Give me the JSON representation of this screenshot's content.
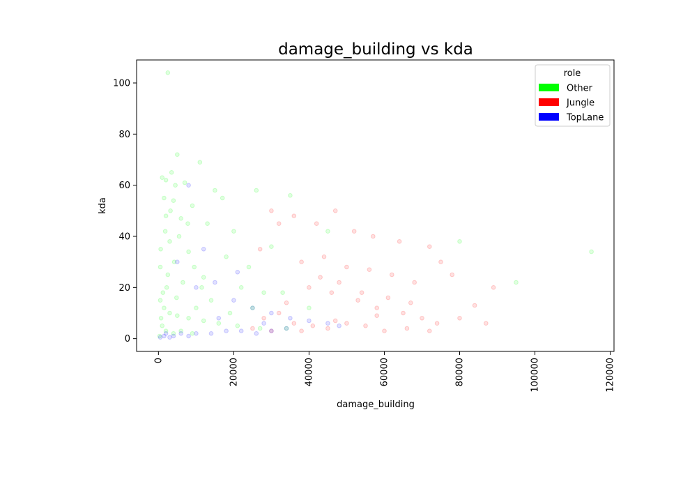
{
  "chart_data": {
    "type": "scatter",
    "title": "damage_building vs kda",
    "xlabel": "damage_building",
    "ylabel": "kda",
    "xlim": [
      -5800,
      121000
    ],
    "ylim": [
      -5,
      109
    ],
    "x_ticks": [
      0,
      20000,
      40000,
      60000,
      80000,
      100000,
      120000
    ],
    "x_tick_labels": [
      "0",
      "20000",
      "40000",
      "60000",
      "80000",
      "100000",
      "120000"
    ],
    "y_ticks": [
      0,
      20,
      40,
      60,
      80,
      100
    ],
    "y_tick_labels": [
      "0",
      "20",
      "40",
      "60",
      "80",
      "100"
    ],
    "x_tick_rotation": 90,
    "grid": false,
    "legend": {
      "title": "role",
      "placement": "top-right",
      "entries": [
        {
          "label": "Other",
          "color": "#00ff00"
        },
        {
          "label": "Jungle",
          "color": "#ff0000"
        },
        {
          "label": "TopLane",
          "color": "#0000ff"
        }
      ]
    },
    "series": [
      {
        "name": "Other",
        "color": "#00ff00",
        "points": [
          [
            2500,
            104
          ],
          [
            5000,
            72
          ],
          [
            11000,
            69
          ],
          [
            3500,
            65
          ],
          [
            1000,
            63
          ],
          [
            2000,
            62
          ],
          [
            4500,
            60
          ],
          [
            7000,
            61
          ],
          [
            15000,
            58
          ],
          [
            1500,
            55
          ],
          [
            4000,
            54
          ],
          [
            9000,
            52
          ],
          [
            17000,
            55
          ],
          [
            26000,
            58
          ],
          [
            35000,
            56
          ],
          [
            2000,
            48
          ],
          [
            6000,
            47
          ],
          [
            13000,
            45
          ],
          [
            20000,
            42
          ],
          [
            45000,
            42
          ],
          [
            80000,
            38
          ],
          [
            95000,
            22
          ],
          [
            115000,
            34
          ],
          [
            3000,
            38
          ],
          [
            8000,
            34
          ],
          [
            18000,
            32
          ],
          [
            30000,
            36
          ],
          [
            500,
            28
          ],
          [
            2500,
            25
          ],
          [
            6500,
            22
          ],
          [
            12000,
            24
          ],
          [
            22000,
            20
          ],
          [
            33000,
            18
          ],
          [
            500,
            15
          ],
          [
            1500,
            12
          ],
          [
            3000,
            10
          ],
          [
            5000,
            9
          ],
          [
            8000,
            8
          ],
          [
            12000,
            7
          ],
          [
            16000,
            6
          ],
          [
            21000,
            5
          ],
          [
            27000,
            4
          ],
          [
            34000,
            4
          ],
          [
            1000,
            5
          ],
          [
            2000,
            3
          ],
          [
            4000,
            2
          ],
          [
            6000,
            3
          ],
          [
            9000,
            2
          ],
          [
            300,
            1
          ],
          [
            700,
            8
          ],
          [
            1200,
            18
          ],
          [
            4200,
            30
          ],
          [
            7800,
            45
          ],
          [
            10000,
            12
          ],
          [
            14000,
            15
          ],
          [
            19000,
            10
          ],
          [
            25000,
            12
          ],
          [
            1800,
            42
          ],
          [
            3200,
            50
          ],
          [
            600,
            35
          ],
          [
            5500,
            40
          ],
          [
            9500,
            28
          ],
          [
            2200,
            20
          ],
          [
            4800,
            16
          ],
          [
            11500,
            20
          ],
          [
            24000,
            28
          ],
          [
            28000,
            18
          ],
          [
            40000,
            12
          ]
        ]
      },
      {
        "name": "Jungle",
        "color": "#ff0000",
        "points": [
          [
            30000,
            50
          ],
          [
            32000,
            45
          ],
          [
            36000,
            48
          ],
          [
            42000,
            45
          ],
          [
            47000,
            50
          ],
          [
            52000,
            42
          ],
          [
            57000,
            40
          ],
          [
            64000,
            38
          ],
          [
            72000,
            36
          ],
          [
            75000,
            30
          ],
          [
            27000,
            35
          ],
          [
            38000,
            30
          ],
          [
            44000,
            32
          ],
          [
            50000,
            28
          ],
          [
            56000,
            27
          ],
          [
            62000,
            25
          ],
          [
            68000,
            22
          ],
          [
            78000,
            25
          ],
          [
            84000,
            13
          ],
          [
            87000,
            6
          ],
          [
            89000,
            20
          ],
          [
            40000,
            20
          ],
          [
            46000,
            18
          ],
          [
            53000,
            15
          ],
          [
            58000,
            12
          ],
          [
            65000,
            10
          ],
          [
            70000,
            8
          ],
          [
            74000,
            6
          ],
          [
            80000,
            8
          ],
          [
            32000,
            10
          ],
          [
            36000,
            6
          ],
          [
            41000,
            5
          ],
          [
            45000,
            4
          ],
          [
            50000,
            6
          ],
          [
            55000,
            5
          ],
          [
            60000,
            3
          ],
          [
            66000,
            4
          ],
          [
            72000,
            3
          ],
          [
            28000,
            8
          ],
          [
            34000,
            14
          ],
          [
            43000,
            24
          ],
          [
            48000,
            22
          ],
          [
            54000,
            18
          ],
          [
            61000,
            16
          ],
          [
            67000,
            14
          ],
          [
            25000,
            4
          ],
          [
            30000,
            3
          ],
          [
            38000,
            3
          ],
          [
            47000,
            7
          ],
          [
            58000,
            9
          ]
        ]
      },
      {
        "name": "TopLane",
        "color": "#0000ff",
        "points": [
          [
            8000,
            60
          ],
          [
            12000,
            35
          ],
          [
            5000,
            30
          ],
          [
            15000,
            22
          ],
          [
            10000,
            20
          ],
          [
            20000,
            15
          ],
          [
            25000,
            12
          ],
          [
            30000,
            10
          ],
          [
            35000,
            8
          ],
          [
            40000,
            7
          ],
          [
            45000,
            6
          ],
          [
            48000,
            5
          ],
          [
            2000,
            2
          ],
          [
            4000,
            1
          ],
          [
            6000,
            2
          ],
          [
            8000,
            1
          ],
          [
            10000,
            2
          ],
          [
            14000,
            2
          ],
          [
            18000,
            3
          ],
          [
            22000,
            3
          ],
          [
            26000,
            2
          ],
          [
            30000,
            3
          ],
          [
            34000,
            4
          ],
          [
            500,
            0.5
          ],
          [
            1500,
            1
          ],
          [
            3000,
            0.5
          ],
          [
            16000,
            8
          ],
          [
            28000,
            6
          ],
          [
            21000,
            26
          ]
        ]
      }
    ]
  }
}
